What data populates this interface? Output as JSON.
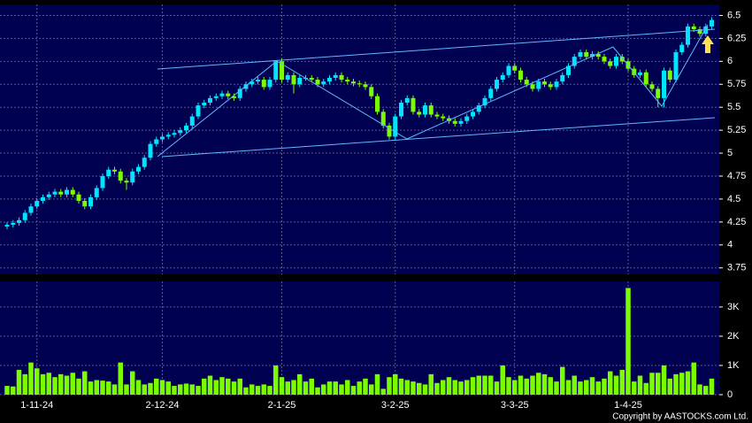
{
  "chart_data": [
    {
      "type": "candlestick",
      "up_color": "#00e5ff",
      "down_color": "#7cfc00",
      "grid": true,
      "ylim": [
        3.68,
        6.62
      ],
      "yticks": [
        3.75,
        4,
        4.25,
        4.5,
        4.75,
        5,
        5.25,
        5.5,
        5.75,
        6,
        6.25,
        6.5
      ],
      "open": [
        4.2,
        4.22,
        4.24,
        4.27,
        4.35,
        4.42,
        4.48,
        4.52,
        4.55,
        4.58,
        4.55,
        4.6,
        4.55,
        4.48,
        4.42,
        4.52,
        4.62,
        4.75,
        4.82,
        4.8,
        4.7,
        4.68,
        4.8,
        4.85,
        4.95,
        5.1,
        5.15,
        5.18,
        5.2,
        5.22,
        5.25,
        5.3,
        5.4,
        5.52,
        5.55,
        5.6,
        5.62,
        5.65,
        5.62,
        5.6,
        5.7,
        5.75,
        5.78,
        5.8,
        5.72,
        5.8,
        6.0,
        5.8,
        5.85,
        5.75,
        5.82,
        5.82,
        5.8,
        5.75,
        5.78,
        5.82,
        5.85,
        5.8,
        5.78,
        5.76,
        5.75,
        5.72,
        5.62,
        5.45,
        5.3,
        5.18,
        5.4,
        5.55,
        5.6,
        5.45,
        5.42,
        5.52,
        5.42,
        5.4,
        5.38,
        5.35,
        5.32,
        5.35,
        5.4,
        5.45,
        5.52,
        5.6,
        5.7,
        5.8,
        5.85,
        5.95,
        5.9,
        5.8,
        5.75,
        5.7,
        5.78,
        5.75,
        5.72,
        5.78,
        5.85,
        5.95,
        6.05,
        6.1,
        6.05,
        6.08,
        6.05,
        6.0,
        5.95,
        6.05,
        6.0,
        5.92,
        5.85,
        5.88,
        5.75,
        5.7,
        5.6,
        5.9,
        5.8,
        6.1,
        6.18,
        6.38,
        6.35,
        6.3,
        6.38
      ],
      "high": [
        4.25,
        4.27,
        4.3,
        4.38,
        4.45,
        4.51,
        4.55,
        4.58,
        4.61,
        4.61,
        4.63,
        4.63,
        4.58,
        4.51,
        4.55,
        4.65,
        4.78,
        4.85,
        4.85,
        4.83,
        4.73,
        4.83,
        4.88,
        4.98,
        5.13,
        5.18,
        5.21,
        5.23,
        5.25,
        5.28,
        5.33,
        5.43,
        5.55,
        5.58,
        5.63,
        5.65,
        5.68,
        5.68,
        5.65,
        5.73,
        5.78,
        5.81,
        5.83,
        5.83,
        5.83,
        6.01,
        6.03,
        5.88,
        5.88,
        5.85,
        5.85,
        5.85,
        5.83,
        5.81,
        5.85,
        5.88,
        5.88,
        5.83,
        5.81,
        5.79,
        5.78,
        5.75,
        5.65,
        5.48,
        5.33,
        5.43,
        5.58,
        5.63,
        5.63,
        5.48,
        5.55,
        5.55,
        5.45,
        5.43,
        5.41,
        5.38,
        5.38,
        5.43,
        5.48,
        5.55,
        5.63,
        5.73,
        5.83,
        5.88,
        5.98,
        5.98,
        5.93,
        5.83,
        5.78,
        5.81,
        5.81,
        5.78,
        5.81,
        5.88,
        5.98,
        6.08,
        6.13,
        6.13,
        6.11,
        6.11,
        6.08,
        6.03,
        6.08,
        6.08,
        6.03,
        5.95,
        5.91,
        5.91,
        5.78,
        5.73,
        5.93,
        5.93,
        6.13,
        6.21,
        6.41,
        6.41,
        6.38,
        6.41,
        6.48
      ],
      "low": [
        4.17,
        4.19,
        4.21,
        4.24,
        4.32,
        4.39,
        4.45,
        4.49,
        4.52,
        4.52,
        4.52,
        4.52,
        4.45,
        4.39,
        4.39,
        4.49,
        4.59,
        4.72,
        4.77,
        4.67,
        4.6,
        4.65,
        4.77,
        4.82,
        4.92,
        5.07,
        5.12,
        5.15,
        5.17,
        5.19,
        5.22,
        5.27,
        5.37,
        5.49,
        5.52,
        5.57,
        5.59,
        5.59,
        5.57,
        5.57,
        5.67,
        5.72,
        5.75,
        5.69,
        5.69,
        5.77,
        5.77,
        5.77,
        5.65,
        5.72,
        5.79,
        5.77,
        5.72,
        5.72,
        5.75,
        5.79,
        5.77,
        5.75,
        5.73,
        5.72,
        5.69,
        5.59,
        5.42,
        5.27,
        5.15,
        5.15,
        5.37,
        5.52,
        5.42,
        5.39,
        5.39,
        5.39,
        5.37,
        5.35,
        5.32,
        5.29,
        5.29,
        5.32,
        5.37,
        5.42,
        5.49,
        5.57,
        5.67,
        5.77,
        5.82,
        5.87,
        5.77,
        5.72,
        5.67,
        5.67,
        5.72,
        5.69,
        5.69,
        5.75,
        5.82,
        5.92,
        6.02,
        6.02,
        6.02,
        6.02,
        5.97,
        5.92,
        5.92,
        5.97,
        5.89,
        5.82,
        5.82,
        5.72,
        5.67,
        5.5,
        5.5,
        5.77,
        5.77,
        6.07,
        6.15,
        6.32,
        6.27,
        6.27,
        6.35
      ],
      "close": [
        4.22,
        4.24,
        4.27,
        4.35,
        4.42,
        4.48,
        4.52,
        4.55,
        4.58,
        4.55,
        4.6,
        4.55,
        4.48,
        4.42,
        4.52,
        4.62,
        4.75,
        4.82,
        4.8,
        4.7,
        4.68,
        4.8,
        4.85,
        4.95,
        5.1,
        5.15,
        5.18,
        5.2,
        5.22,
        5.25,
        5.3,
        5.4,
        5.52,
        5.55,
        5.6,
        5.62,
        5.65,
        5.62,
        5.6,
        5.7,
        5.75,
        5.78,
        5.8,
        5.72,
        5.8,
        6.0,
        5.8,
        5.85,
        5.75,
        5.82,
        5.82,
        5.8,
        5.75,
        5.78,
        5.82,
        5.85,
        5.8,
        5.78,
        5.76,
        5.75,
        5.72,
        5.62,
        5.45,
        5.3,
        5.18,
        5.4,
        5.55,
        5.6,
        5.45,
        5.42,
        5.52,
        5.42,
        5.4,
        5.38,
        5.35,
        5.32,
        5.35,
        5.4,
        5.45,
        5.52,
        5.6,
        5.7,
        5.8,
        5.85,
        5.95,
        5.9,
        5.8,
        5.75,
        5.7,
        5.78,
        5.75,
        5.72,
        5.78,
        5.85,
        5.95,
        6.05,
        6.1,
        6.05,
        6.08,
        6.05,
        6.0,
        5.95,
        6.05,
        6.0,
        5.92,
        5.85,
        5.88,
        5.75,
        5.7,
        5.6,
        5.9,
        5.8,
        6.1,
        6.18,
        6.38,
        6.35,
        6.3,
        6.38,
        6.45
      ]
    },
    {
      "type": "bar",
      "color": "#7cfc00",
      "grid": true,
      "ylim": [
        0,
        3875
      ],
      "yticks": [
        0,
        {
          "value": 1000,
          "label": "1K"
        },
        {
          "value": 2000,
          "label": "2K"
        },
        {
          "value": 3000,
          "label": "3K"
        }
      ],
      "categories": [
        null,
        null,
        null,
        null,
        null,
        "1-11-24",
        null,
        null,
        null,
        null,
        null,
        null,
        null,
        null,
        null,
        null,
        null,
        null,
        null,
        null,
        null,
        null,
        null,
        null,
        null,
        null,
        "2-12-24",
        null,
        null,
        null,
        null,
        null,
        null,
        null,
        null,
        null,
        null,
        null,
        null,
        null,
        null,
        null,
        null,
        null,
        null,
        null,
        "2-1-25",
        null,
        null,
        null,
        null,
        null,
        null,
        null,
        null,
        null,
        null,
        null,
        null,
        null,
        null,
        null,
        null,
        null,
        null,
        "3-2-25",
        null,
        null,
        null,
        null,
        null,
        null,
        null,
        null,
        null,
        null,
        null,
        null,
        null,
        null,
        null,
        null,
        null,
        null,
        null,
        "3-3-25",
        null,
        null,
        null,
        null,
        null,
        null,
        null,
        null,
        null,
        null,
        null,
        null,
        null,
        null,
        null,
        null,
        null,
        null,
        "1-4-25",
        null,
        null,
        null,
        null,
        null,
        null,
        null,
        null,
        null,
        null,
        null,
        null,
        null,
        null
      ],
      "values": [
        300,
        280,
        850,
        700,
        1100,
        900,
        700,
        750,
        600,
        700,
        650,
        750,
        550,
        800,
        450,
        500,
        480,
        450,
        350,
        1100,
        350,
        800,
        500,
        350,
        400,
        550,
        500,
        450,
        300,
        350,
        380,
        350,
        300,
        550,
        650,
        500,
        600,
        550,
        450,
        550,
        250,
        350,
        300,
        350,
        300,
        1000,
        600,
        450,
        500,
        700,
        450,
        550,
        250,
        350,
        450,
        450,
        350,
        500,
        300,
        450,
        550,
        350,
        700,
        200,
        600,
        700,
        550,
        500,
        450,
        400,
        350,
        700,
        400,
        500,
        600,
        500,
        450,
        500,
        600,
        650,
        650,
        650,
        450,
        1000,
        600,
        500,
        650,
        550,
        650,
        750,
        700,
        600,
        450,
        950,
        500,
        650,
        450,
        500,
        600,
        450,
        550,
        800,
        650,
        850,
        3650,
        450,
        650,
        400,
        750,
        750,
        1000,
        550,
        700,
        750,
        800,
        1100,
        350,
        300,
        550
      ]
    }
  ],
  "copyright": "Copyright by AASTOCKS.com Ltd."
}
